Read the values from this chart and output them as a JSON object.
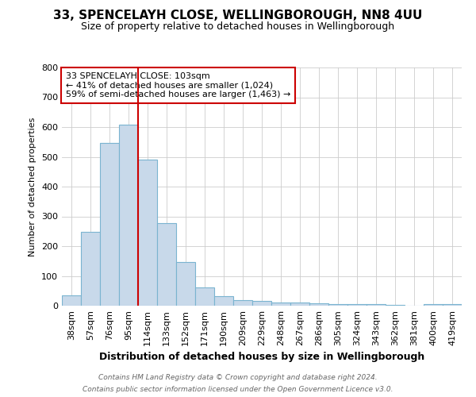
{
  "title1": "33, SPENCELAYH CLOSE, WELLINGBOROUGH, NN8 4UU",
  "title2": "Size of property relative to detached houses in Wellingborough",
  "xlabel": "Distribution of detached houses by size in Wellingborough",
  "ylabel": "Number of detached properties",
  "footnote1": "Contains HM Land Registry data © Crown copyright and database right 2024.",
  "footnote2": "Contains public sector information licensed under the Open Government Licence v3.0.",
  "bar_labels": [
    "38sqm",
    "57sqm",
    "76sqm",
    "95sqm",
    "114sqm",
    "133sqm",
    "152sqm",
    "171sqm",
    "190sqm",
    "209sqm",
    "229sqm",
    "248sqm",
    "267sqm",
    "286sqm",
    "305sqm",
    "324sqm",
    "343sqm",
    "362sqm",
    "381sqm",
    "400sqm",
    "419sqm"
  ],
  "bar_values": [
    35,
    248,
    547,
    608,
    492,
    278,
    148,
    62,
    33,
    20,
    15,
    12,
    10,
    7,
    6,
    5,
    5,
    4,
    1,
    6,
    6
  ],
  "bar_color": "#c8d9ea",
  "bar_edge_color": "#7ab4d0",
  "vline_x": 3.5,
  "vline_color": "#cc0000",
  "annotation_line1": "33 SPENCELAYH CLOSE: 103sqm",
  "annotation_line2": "← 41% of detached houses are smaller (1,024)",
  "annotation_line3": "59% of semi-detached houses are larger (1,463) →",
  "annotation_box_color": "#ffffff",
  "annotation_box_edge": "#cc0000",
  "ylim": [
    0,
    800
  ],
  "yticks": [
    0,
    100,
    200,
    300,
    400,
    500,
    600,
    700,
    800
  ],
  "bg_color": "#ffffff",
  "grid_color": "#cccccc",
  "title1_fontsize": 11,
  "title2_fontsize": 9,
  "xlabel_fontsize": 9,
  "ylabel_fontsize": 8,
  "tick_fontsize": 8,
  "annotation_fontsize": 8,
  "footnote_fontsize": 6.5
}
